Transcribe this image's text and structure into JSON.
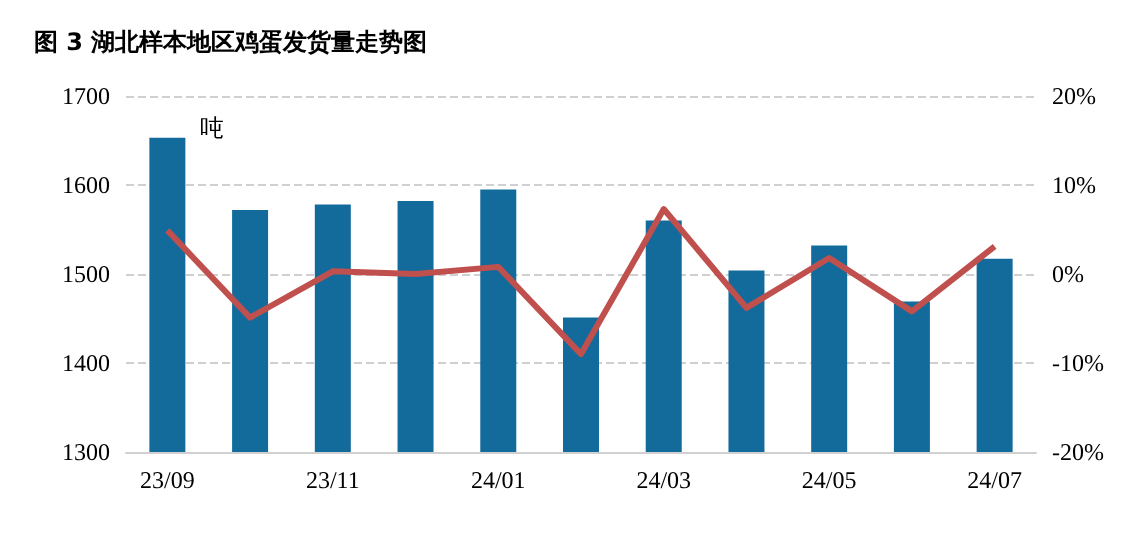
{
  "chart_data": {
    "type": "bar",
    "title": "图 3 湖北样本地区鸡蛋发货量走势图",
    "annotations": [
      "吨"
    ],
    "categories": [
      "23/09",
      null,
      "23/11",
      null,
      "24/01",
      null,
      "24/03",
      null,
      "24/05",
      null,
      "24/07"
    ],
    "series": [
      {
        "color": "#136b9b",
        "values": [
          1653,
          1572,
          1578,
          1582,
          1595,
          1451,
          1560,
          1504,
          1532,
          1469,
          1517
        ]
      },
      {
        "type": "line",
        "axis": "y2",
        "color": "#c0504d",
        "values": [
          4.9,
          -4.9,
          0.3,
          0,
          0.8,
          -9.0,
          7.3,
          -3.8,
          1.8,
          -4.2,
          3.1
        ]
      }
    ],
    "ylim": [
      1300,
      1700
    ],
    "yticks": [
      1300,
      1400,
      1500,
      1600,
      1700
    ],
    "y2lim": [
      -20,
      20
    ],
    "y2ticks": [
      {
        "value": -20,
        "label": "-20%"
      },
      {
        "value": -10,
        "label": "-10%"
      },
      {
        "value": 0,
        "label": "0%"
      },
      {
        "value": 10,
        "label": "10%"
      },
      {
        "value": 20,
        "label": "20%"
      }
    ],
    "grid": "y",
    "marker": "none",
    "line_style": "solid"
  }
}
